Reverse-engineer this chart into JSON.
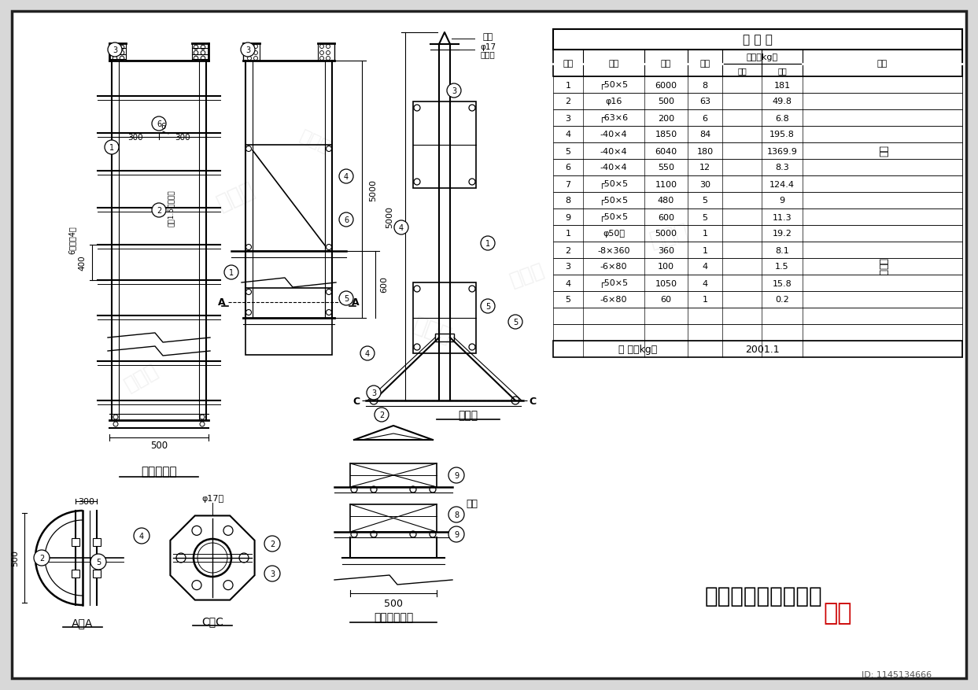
{
  "bg_color": "#d8d8d8",
  "paper_color": "#ffffff",
  "title": "塔梯、避雷针结构图",
  "table_title": "材 料 表",
  "ladder_rows": [
    [
      "1",
      "┌50×5",
      "6000",
      "8",
      "",
      "181"
    ],
    [
      "2",
      "φ16",
      "500",
      "63",
      "",
      "49.8"
    ],
    [
      "3",
      "┌63×6",
      "200",
      "6",
      "",
      "6.8"
    ],
    [
      "4",
      "-40×4",
      "1850",
      "84",
      "",
      "195.8"
    ],
    [
      "5",
      "-40×4",
      "6040",
      "180",
      "",
      "1369.9"
    ],
    [
      "6",
      "-40×4",
      "550",
      "12",
      "",
      "8.3"
    ],
    [
      "7",
      "┌50×5",
      "1100",
      "30",
      "",
      "124.4"
    ],
    [
      "8",
      "┌50×5",
      "480",
      "5",
      "",
      "9"
    ],
    [
      "9",
      "┌50×5",
      "600",
      "5",
      "",
      "11.3"
    ]
  ],
  "lightning_rows": [
    [
      "1",
      "φ50管",
      "5000",
      "1",
      "",
      "19.2"
    ],
    [
      "2",
      "-8×360",
      "360",
      "1",
      "",
      "8.1"
    ],
    [
      "3",
      "-6×80",
      "100",
      "4",
      "",
      "1.5"
    ],
    [
      "4",
      "┌50×5",
      "1050",
      "4",
      "",
      "15.8"
    ],
    [
      "5",
      "-6×80",
      "60",
      "1",
      "",
      "0.2"
    ]
  ],
  "remark_ladder": "塔梯",
  "remark_lightning": "避雷针",
  "total_label": "合 计（kg）",
  "total_value": "2001.1",
  "label_ladderguard": "塔梯、护圈",
  "label_aa": "A－A",
  "label_cc": "C－C",
  "label_lightning_rod": "避雷针",
  "label_fixed": "塔梯固定示意",
  "label_tower_ladder": "塔梯",
  "id_text": "ID: 1145134666"
}
